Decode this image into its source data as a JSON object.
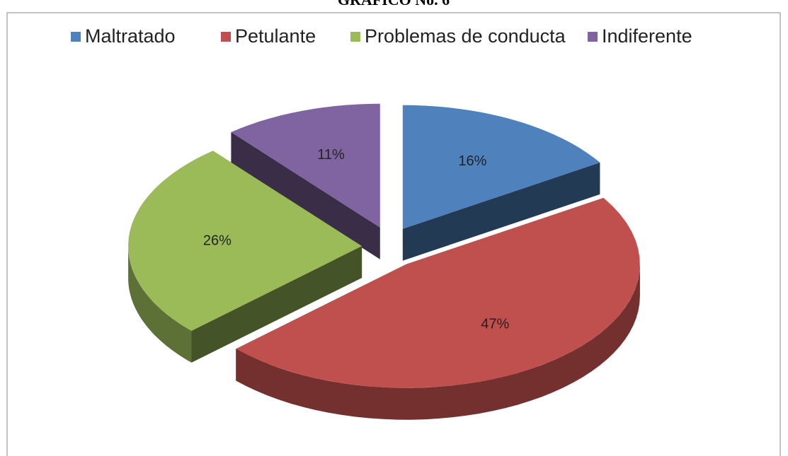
{
  "chart_data": {
    "type": "pie",
    "title": "GRAFICO No. 6",
    "categories": [
      "Maltratado",
      "Petulante",
      "Problemas de conducta",
      "Indiferente"
    ],
    "values": [
      16,
      47,
      26,
      11
    ],
    "value_labels": [
      "16%",
      "47%",
      "26%",
      "11%"
    ],
    "colors": [
      "#4f81bd",
      "#c0504d",
      "#9bbb59",
      "#8064a2"
    ],
    "legend": "top"
  }
}
